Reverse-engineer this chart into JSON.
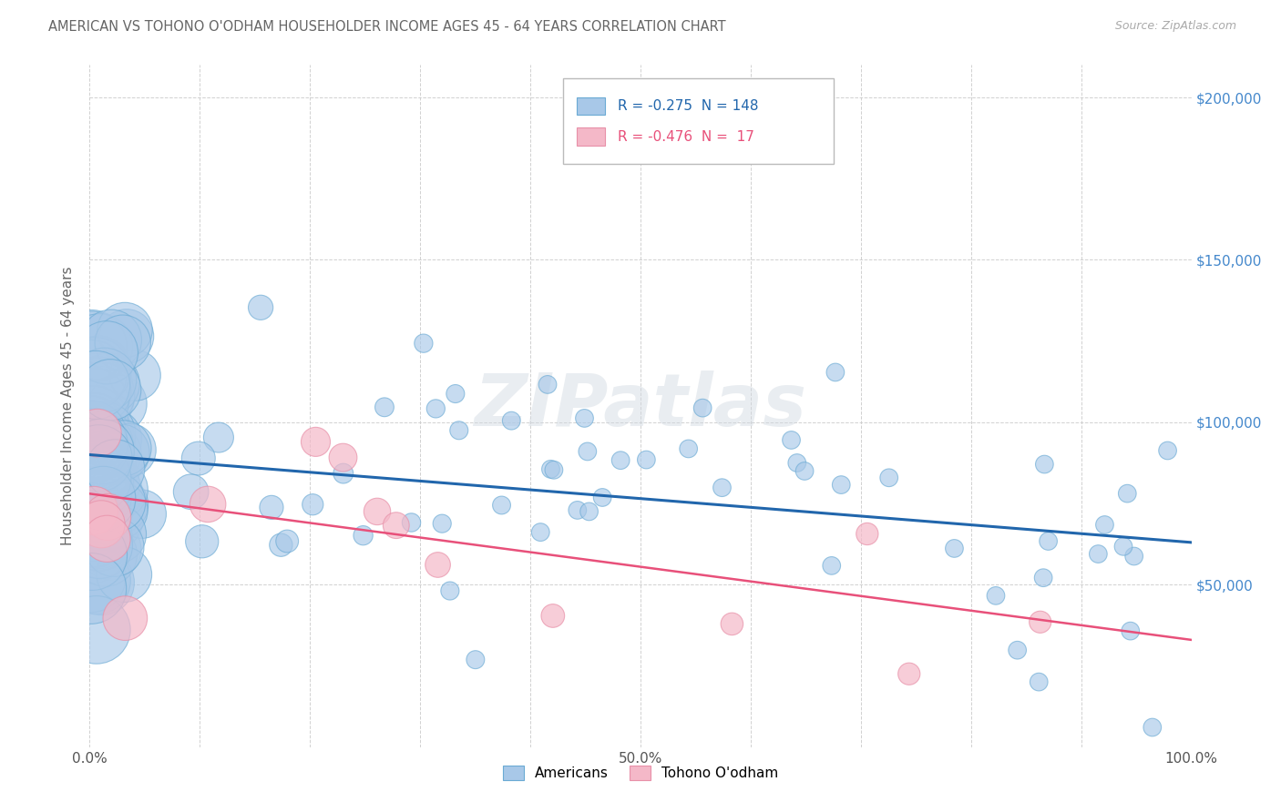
{
  "title": "AMERICAN VS TOHONO O'ODHAM HOUSEHOLDER INCOME AGES 45 - 64 YEARS CORRELATION CHART",
  "source": "Source: ZipAtlas.com",
  "ylabel": "Householder Income Ages 45 - 64 years",
  "xlim": [
    0,
    1.0
  ],
  "ylim": [
    0,
    210000
  ],
  "xtick_positions": [
    0.0,
    0.1,
    0.2,
    0.3,
    0.4,
    0.5,
    0.6,
    0.7,
    0.8,
    0.9,
    1.0
  ],
  "xtick_labels": [
    "0.0%",
    "",
    "",
    "",
    "",
    "50.0%",
    "",
    "",
    "",
    "",
    "100.0%"
  ],
  "ytick_positions": [
    0,
    50000,
    100000,
    150000,
    200000
  ],
  "ytick_labels_right": [
    "",
    "$50,000",
    "$100,000",
    "$150,000",
    "$200,000"
  ],
  "r_american": -0.275,
  "n_american": 148,
  "r_tohono": -0.476,
  "n_tohono": 17,
  "legend_label_american": "Americans",
  "legend_label_tohono": "Tohono O'odham",
  "blue_fill": "#a8c8e8",
  "blue_edge": "#6aaad4",
  "blue_line": "#2166ac",
  "pink_fill": "#f4b8c8",
  "pink_edge": "#e890a8",
  "pink_line": "#e8507a",
  "watermark": "ZIPatlas",
  "bg": "#ffffff",
  "grid_color": "#cccccc",
  "title_color": "#666666",
  "right_tick_color": "#4488cc",
  "american_seed": 123,
  "tohono_seed": 456,
  "blue_intercept": 90000,
  "blue_slope": -27000,
  "pink_intercept": 78000,
  "pink_slope": -45000
}
